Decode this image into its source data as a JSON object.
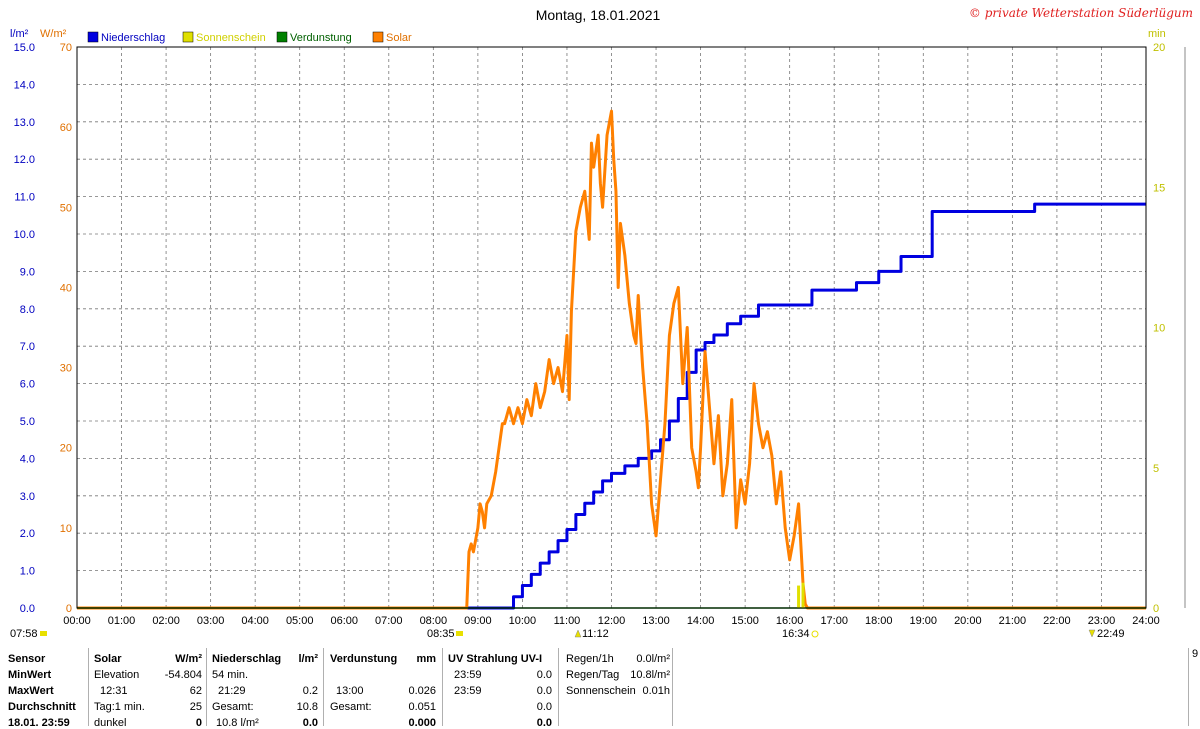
{
  "header": {
    "title": "Montag, 18.01.2021",
    "copyright": "© private Wetterstation Süderlügum"
  },
  "colors": {
    "niederschlag": "#0000e0",
    "sonnenschein": "#e0e000",
    "verdunstung": "#008000",
    "solar": "#ff8000"
  },
  "chart_data": {
    "type": "line",
    "x_range": [
      "00:00",
      "24:00"
    ],
    "x_ticks": [
      "00:00",
      "01:00",
      "02:00",
      "03:00",
      "04:00",
      "05:00",
      "06:00",
      "07:00",
      "08:00",
      "09:00",
      "10:00",
      "11:00",
      "12:00",
      "13:00",
      "14:00",
      "15:00",
      "16:00",
      "17:00",
      "18:00",
      "19:00",
      "20:00",
      "21:00",
      "22:00",
      "23:00",
      "24:00"
    ],
    "legend": [
      "Niederschlag",
      "Sonnenschein",
      "Verdunstung",
      "Solar"
    ],
    "axes": {
      "left1": {
        "unit": "l/m²",
        "min": 0,
        "max": 15,
        "ticks": [
          "0.0",
          "1.0",
          "2.0",
          "3.0",
          "4.0",
          "5.0",
          "6.0",
          "7.0",
          "8.0",
          "9.0",
          "10.0",
          "11.0",
          "12.0",
          "13.0",
          "14.0",
          "15.0"
        ]
      },
      "left2": {
        "unit": "W/m²",
        "min": 0,
        "max": 70,
        "ticks": [
          "0",
          "10",
          "20",
          "30",
          "40",
          "50",
          "60",
          "70"
        ]
      },
      "right": {
        "unit": "min",
        "min": 0,
        "max": 20,
        "ticks": [
          "0",
          "5",
          "10",
          "15",
          "20"
        ]
      }
    },
    "series": [
      {
        "name": "Niederschlag",
        "axis": "left1",
        "x": [
          0,
          9.6,
          9.8,
          10.0,
          10.2,
          10.4,
          10.6,
          10.8,
          11.0,
          11.2,
          11.4,
          11.6,
          11.8,
          12.0,
          12.3,
          12.6,
          12.9,
          13.1,
          13.3,
          13.5,
          13.7,
          13.9,
          14.1,
          14.3,
          14.6,
          14.9,
          15.3,
          16.2,
          16.5,
          17.0,
          17.5,
          18.0,
          18.5,
          19.0,
          19.2,
          20.5,
          21.5,
          24.0
        ],
        "y": [
          0,
          0,
          0.3,
          0.6,
          0.9,
          1.2,
          1.5,
          1.8,
          2.1,
          2.5,
          2.8,
          3.1,
          3.4,
          3.6,
          3.8,
          4.0,
          4.2,
          4.5,
          5.0,
          5.6,
          6.3,
          6.9,
          7.1,
          7.3,
          7.6,
          7.8,
          8.1,
          8.1,
          8.5,
          8.5,
          8.7,
          9.0,
          9.4,
          9.4,
          10.6,
          10.6,
          10.8,
          10.8
        ]
      },
      {
        "name": "Solar",
        "axis": "left2",
        "x": [
          0,
          8.75,
          8.8,
          8.85,
          8.9,
          9.0,
          9.05,
          9.1,
          9.15,
          9.2,
          9.3,
          9.4,
          9.5,
          9.55,
          9.6,
          9.7,
          9.8,
          9.9,
          10.0,
          10.1,
          10.2,
          10.3,
          10.4,
          10.5,
          10.6,
          10.7,
          10.8,
          10.9,
          11.0,
          11.05,
          11.1,
          11.2,
          11.3,
          11.4,
          11.5,
          11.55,
          11.6,
          11.7,
          11.75,
          11.8,
          11.9,
          12.0,
          12.05,
          12.1,
          12.15,
          12.2,
          12.3,
          12.4,
          12.5,
          12.55,
          12.6,
          12.7,
          12.8,
          12.9,
          13.0,
          13.1,
          13.2,
          13.3,
          13.4,
          13.5,
          13.6,
          13.7,
          13.8,
          13.9,
          13.95,
          14.0,
          14.1,
          14.2,
          14.3,
          14.4,
          14.5,
          14.6,
          14.7,
          14.8,
          14.9,
          15.0,
          15.1,
          15.2,
          15.3,
          15.4,
          15.5,
          15.6,
          15.7,
          15.8,
          15.9,
          16.0,
          16.1,
          16.2,
          16.3,
          16.35,
          16.4,
          24.0
        ],
        "y": [
          0,
          0,
          7,
          8,
          7,
          10,
          13,
          12,
          10,
          13,
          14,
          17,
          21,
          23,
          23,
          25,
          23,
          25,
          23,
          26,
          24,
          28,
          25,
          27,
          31,
          28,
          30,
          27,
          34,
          26,
          37,
          47,
          50,
          52,
          46,
          58,
          55,
          59,
          53,
          50,
          59,
          62,
          56,
          52,
          40,
          48,
          44,
          38,
          34,
          33,
          39,
          30,
          23,
          13,
          9,
          16,
          23,
          34,
          38,
          40,
          28,
          35,
          20,
          17,
          15,
          20,
          32,
          25,
          18,
          24,
          14,
          18,
          26,
          10,
          16,
          13,
          18,
          28,
          23,
          20,
          22,
          19,
          13,
          17,
          10,
          6,
          9,
          13,
          3,
          0.5,
          0,
          0
        ]
      },
      {
        "name": "Verdunstung",
        "axis": "right",
        "x": [
          0,
          24.0
        ],
        "y": [
          0,
          0
        ]
      },
      {
        "name": "Sonnenschein",
        "axis": "right",
        "bars": [
          {
            "x": 16.2,
            "y": 0.8
          },
          {
            "x": 16.3,
            "y": 0.9
          }
        ]
      }
    ],
    "markers": {
      "sunrise": "08:35",
      "sunset": "16:34",
      "noon": "11:12",
      "moon": "22:49",
      "left_label": "07:58"
    }
  },
  "stats": {
    "sensor": {
      "header": "Sensor",
      "rows": [
        "MinWert",
        "MaxWert",
        "Durchschnitt",
        "18.01. 23:59"
      ]
    },
    "solar": {
      "header": "Solar",
      "unit": "W/m²",
      "rows": [
        {
          "label": "Elevation",
          "value": "-54.804"
        },
        {
          "label": "12:31",
          "value": "62"
        },
        {
          "label": "Tag:1 min.",
          "value": "25"
        },
        {
          "label": "dunkel",
          "value": "0"
        }
      ]
    },
    "niederschlag": {
      "header": "Niederschlag",
      "unit": "l/m²",
      "rows": [
        {
          "label": "54 min.",
          "value": ""
        },
        {
          "label": "21:29",
          "value": "0.2"
        },
        {
          "label": "Gesamt:",
          "value": "10.8"
        },
        {
          "label": "10.8 l/m²",
          "value": "0.0"
        }
      ]
    },
    "verdunstung": {
      "header": "Verdunstung",
      "unit": "mm",
      "rows": [
        {
          "label": "",
          "value": ""
        },
        {
          "label": "13:00",
          "value": "0.026"
        },
        {
          "label": "Gesamt:",
          "value": "0.051"
        },
        {
          "label": "",
          "value": "0.000"
        }
      ]
    },
    "uv": {
      "header": "UV Strahlung UV-I",
      "rows": [
        {
          "label": "23:59",
          "value": "0.0"
        },
        {
          "label": "23:59",
          "value": "0.0"
        },
        {
          "label": "",
          "value": "0.0"
        },
        {
          "label": "",
          "value": "0.0"
        }
      ]
    },
    "regen": {
      "rows": [
        {
          "label": "Regen/1h",
          "value": "0.0l/m²"
        },
        {
          "label": "Regen/Tag",
          "value": "10.8l/m²"
        },
        {
          "label": "Sonnenschein",
          "value": "0.01h"
        }
      ]
    },
    "extra": "9"
  }
}
